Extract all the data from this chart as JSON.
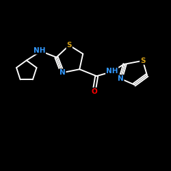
{
  "background_color": "#000000",
  "bond_color": "#ffffff",
  "atom_colors": {
    "S": "#d4a017",
    "N": "#3399ff",
    "O": "#ff0000",
    "H": "#ffffff",
    "C": "#ffffff"
  },
  "figsize": [
    2.5,
    2.5
  ],
  "dpi": 100
}
